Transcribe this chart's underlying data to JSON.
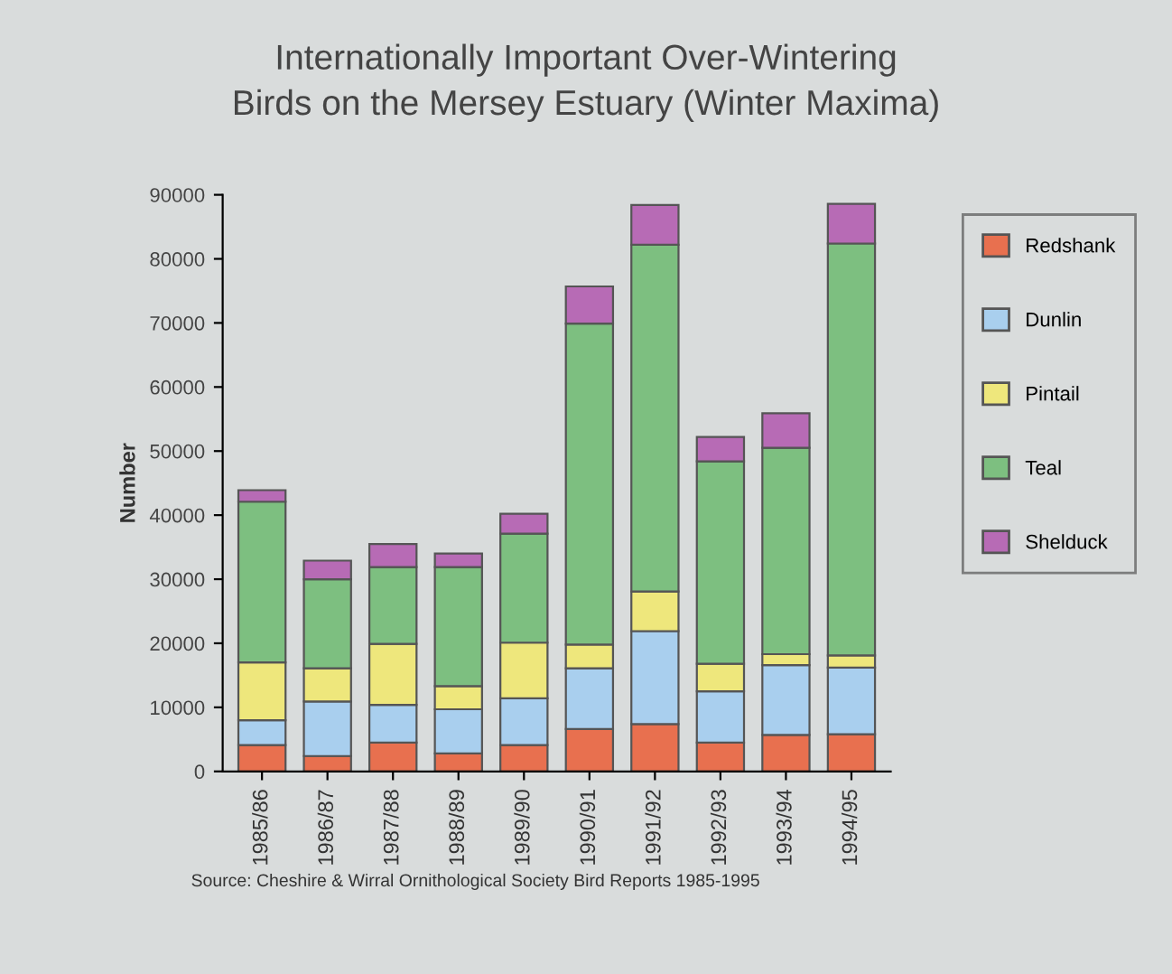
{
  "chart_data": {
    "type": "bar",
    "stacked": true,
    "title": "Internationally Important Over-Wintering\nBirds on the Mersey Estuary (Winter Maxima)",
    "ylabel": "Number",
    "categories": [
      "1985/86",
      "1986/87",
      "1987/88",
      "1988/89",
      "1989/90",
      "1990/91",
      "1991/92",
      "1992/93",
      "1993/94",
      "1994/95"
    ],
    "series": [
      {
        "name": "Redshank",
        "color": "#e8704f",
        "values": [
          4100,
          2400,
          4500,
          2800,
          4100,
          6600,
          7400,
          4500,
          5700,
          5800
        ]
      },
      {
        "name": "Dunlin",
        "color": "#a9cfee",
        "values": [
          3900,
          8500,
          5900,
          6900,
          7300,
          9500,
          14500,
          8000,
          10900,
          10400
        ]
      },
      {
        "name": "Pintail",
        "color": "#eee77c",
        "values": [
          9000,
          5200,
          9500,
          3600,
          8700,
          3700,
          6200,
          4300,
          1700,
          1900
        ]
      },
      {
        "name": "Teal",
        "color": "#7dbf80",
        "values": [
          25100,
          13900,
          12000,
          18600,
          17000,
          50100,
          54100,
          31600,
          32200,
          64300
        ]
      },
      {
        "name": "Shelduck",
        "color": "#b76bb5",
        "values": [
          1800,
          2900,
          3600,
          2100,
          3100,
          5800,
          6200,
          3800,
          5400,
          6200
        ]
      }
    ],
    "ylim": [
      0,
      90000
    ],
    "yticks": [
      0,
      10000,
      20000,
      30000,
      40000,
      50000,
      60000,
      70000,
      80000,
      90000
    ],
    "grid": false,
    "legend": "top right",
    "annotations": [
      "Source: Cheshire & Wirral Ornithological Society Bird Reports 1985-1995"
    ]
  }
}
